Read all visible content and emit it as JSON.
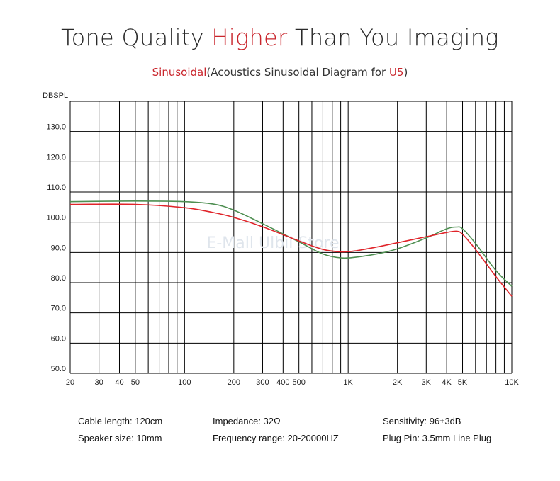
{
  "header": {
    "title_part1": "Tone Quality ",
    "title_accent": "Higher",
    "title_part2": " Than You Imaging",
    "subtitle_accent": "Sinusoidal",
    "subtitle_mid": "(Acoustics Sinusoidal Diagram for ",
    "subtitle_model": "U5",
    "subtitle_end": ")"
  },
  "watermark": "E-Mall Ulbil Store",
  "colors": {
    "accent": "#c9252c",
    "red_curve": "#e0242a",
    "green_curve": "#4f8f52",
    "grid": "#000000"
  },
  "chart_data": {
    "type": "line",
    "ylabel": "DBSPL",
    "x_scale": "log",
    "xlim": [
      20,
      10000
    ],
    "ylim": [
      50,
      140
    ],
    "y_ticks": [
      {
        "value": 50,
        "label": "50.0"
      },
      {
        "value": 60,
        "label": "60.0"
      },
      {
        "value": 70,
        "label": "70.0"
      },
      {
        "value": 80,
        "label": "80.0"
      },
      {
        "value": 90,
        "label": "90.0"
      },
      {
        "value": 100,
        "label": "100.0"
      },
      {
        "value": 110,
        "label": "110.0"
      },
      {
        "value": 120,
        "label": "120.0"
      },
      {
        "value": 130,
        "label": "130.0"
      }
    ],
    "x_ticks": [
      {
        "value": 20,
        "label": "20"
      },
      {
        "value": 30,
        "label": "30"
      },
      {
        "value": 40,
        "label": "40"
      },
      {
        "value": 50,
        "label": "50"
      },
      {
        "value": 100,
        "label": "100"
      },
      {
        "value": 200,
        "label": "200"
      },
      {
        "value": 300,
        "label": "300"
      },
      {
        "value": 400,
        "label": "400"
      },
      {
        "value": 500,
        "label": "500"
      },
      {
        "value": 1000,
        "label": "1K"
      },
      {
        "value": 2000,
        "label": "2K"
      },
      {
        "value": 3000,
        "label": "3K"
      },
      {
        "value": 4000,
        "label": "4K"
      },
      {
        "value": 5000,
        "label": "5K"
      },
      {
        "value": 10000,
        "label": "10K"
      }
    ],
    "x_gridlines": [
      20,
      30,
      40,
      50,
      60,
      70,
      80,
      90,
      100,
      200,
      300,
      400,
      500,
      600,
      700,
      800,
      900,
      1000,
      2000,
      3000,
      4000,
      5000,
      6000,
      7000,
      8000,
      9000,
      10000
    ],
    "y_gridlines": [
      50,
      60,
      70,
      80,
      90,
      100,
      110,
      120,
      130,
      140
    ],
    "grid": true,
    "series": [
      {
        "color": "#4f8f52",
        "x": [
          20,
          50,
          100,
          150,
          200,
          300,
          500,
          700,
          900,
          1100,
          1500,
          2000,
          3000,
          4000,
          4600,
          5000,
          6000,
          8000,
          10000
        ],
        "y": [
          106.8,
          107.0,
          106.8,
          106.0,
          104.0,
          99.5,
          93.5,
          89.5,
          88.2,
          88.4,
          89.5,
          91.2,
          94.8,
          97.8,
          98.4,
          97.8,
          93.0,
          84.0,
          78.8
        ]
      },
      {
        "color": "#e0242a",
        "x": [
          20,
          50,
          100,
          150,
          200,
          300,
          500,
          700,
          900,
          1100,
          1500,
          2000,
          3000,
          4000,
          4600,
          5000,
          6000,
          8000,
          10000
        ],
        "y": [
          105.9,
          105.9,
          104.8,
          103.2,
          101.6,
          98.5,
          93.8,
          91.0,
          90.2,
          90.5,
          91.8,
          93.2,
          95.2,
          96.6,
          97.0,
          96.0,
          91.0,
          82.0,
          75.5
        ]
      }
    ]
  },
  "specs": [
    [
      {
        "key": "cable",
        "text": "Cable length: 120cm"
      },
      {
        "key": "speaker",
        "text": "Speaker size: 10mm"
      }
    ],
    [
      {
        "key": "impedance",
        "text": "Impedance: 32Ω"
      },
      {
        "key": "frequency",
        "text": "Frequency range: 20-20000HZ"
      }
    ],
    [
      {
        "key": "sensitivity",
        "text": "Sensitivity: 96±3dB"
      },
      {
        "key": "plug",
        "text": "Plug Pin: 3.5mm Line Plug"
      }
    ]
  ]
}
